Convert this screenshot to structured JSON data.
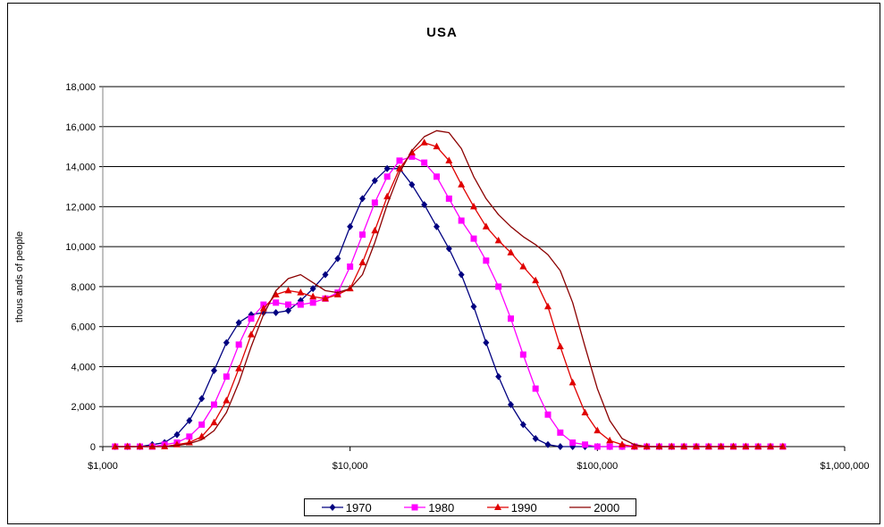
{
  "chart_data": {
    "type": "line",
    "title": "USA",
    "xlabel": "",
    "ylabel": "thous ands  of people",
    "xscale": "log",
    "xlim": [
      1000,
      1000000
    ],
    "ylim": [
      0,
      18000
    ],
    "x_ticks": [
      "$1,000",
      "$10,000",
      "$100,000",
      "$1,000,000"
    ],
    "y_ticks": [
      "0",
      "2,000",
      "4,000",
      "6,000",
      "8,000",
      "10,000",
      "12,000",
      "14,000",
      "16,000",
      "18,000"
    ],
    "grid": "horizontal",
    "legend_position": "bottom",
    "series": [
      {
        "name": "1970",
        "color": "#000080",
        "marker": "diamond",
        "x": [
          1122,
          1259,
          1413,
          1585,
          1778,
          1995,
          2239,
          2512,
          2818,
          3162,
          3548,
          3981,
          4467,
          5012,
          5623,
          6310,
          7079,
          7943,
          8913,
          10000,
          11220,
          12589,
          14125,
          15849,
          17783,
          19953,
          22387,
          25119,
          28184,
          31623,
          35481,
          39811,
          44668,
          50119,
          56234,
          63096,
          70795,
          79433,
          89125,
          100000,
          112202,
          125893,
          141254,
          158489,
          177828,
          199526
        ],
        "y": [
          0,
          0,
          0,
          100,
          200,
          600,
          1300,
          2400,
          3800,
          5200,
          6200,
          6600,
          6700,
          6700,
          6800,
          7300,
          7900,
          8600,
          9400,
          11000,
          12400,
          13300,
          13900,
          13900,
          13100,
          12100,
          11000,
          9900,
          8600,
          7000,
          5200,
          3500,
          2100,
          1100,
          400,
          100,
          0,
          0,
          0,
          0,
          0,
          0,
          0,
          0,
          0,
          0
        ]
      },
      {
        "name": "1980",
        "color": "#ff00ff",
        "marker": "square",
        "x": [
          1122,
          1259,
          1413,
          1585,
          1778,
          1995,
          2239,
          2512,
          2818,
          3162,
          3548,
          3981,
          4467,
          5012,
          5623,
          6310,
          7079,
          7943,
          8913,
          10000,
          11220,
          12589,
          14125,
          15849,
          17783,
          19953,
          22387,
          25119,
          28184,
          31623,
          35481,
          39811,
          44668,
          50119,
          56234,
          63096,
          70795,
          79433,
          89125,
          100000,
          112202,
          125893,
          141254,
          158489,
          177828,
          199526,
          223872,
          251189,
          281838,
          316228,
          354813,
          398107,
          446684,
          501187,
          562341
        ],
        "y": [
          0,
          0,
          0,
          0,
          100,
          200,
          500,
          1100,
          2100,
          3500,
          5100,
          6400,
          7100,
          7200,
          7100,
          7100,
          7200,
          7400,
          7700,
          9000,
          10600,
          12200,
          13500,
          14300,
          14500,
          14200,
          13500,
          12400,
          11300,
          10400,
          9300,
          8000,
          6400,
          4600,
          2900,
          1600,
          700,
          200,
          100,
          0,
          0,
          0,
          0,
          0,
          0,
          0,
          0,
          0,
          0,
          0,
          0,
          0,
          0,
          0,
          0
        ]
      },
      {
        "name": "1990",
        "color": "#e00000",
        "marker": "triangle",
        "x": [
          1122,
          1259,
          1413,
          1585,
          1778,
          1995,
          2239,
          2512,
          2818,
          3162,
          3548,
          3981,
          4467,
          5012,
          5623,
          6310,
          7079,
          7943,
          8913,
          10000,
          11220,
          12589,
          14125,
          15849,
          17783,
          19953,
          22387,
          25119,
          28184,
          31623,
          35481,
          39811,
          44668,
          50119,
          56234,
          63096,
          70795,
          79433,
          89125,
          100000,
          112202,
          125893,
          141254,
          158489,
          177828,
          199526,
          223872,
          251189,
          281838,
          316228,
          354813,
          398107,
          446684,
          501187,
          562341
        ],
        "y": [
          0,
          0,
          0,
          0,
          0,
          100,
          200,
          500,
          1200,
          2300,
          3900,
          5600,
          6900,
          7600,
          7800,
          7700,
          7500,
          7400,
          7600,
          7900,
          9200,
          10800,
          12500,
          13900,
          14700,
          15200,
          15000,
          14300,
          13100,
          12000,
          11000,
          10300,
          9700,
          9000,
          8300,
          7000,
          5000,
          3200,
          1700,
          800,
          300,
          100,
          0,
          0,
          0,
          0,
          0,
          0,
          0,
          0,
          0,
          0,
          0,
          0,
          0
        ]
      },
      {
        "name": "2000",
        "color": "#8b0000",
        "marker": "none",
        "x": [
          1122,
          1259,
          1413,
          1585,
          1778,
          1995,
          2239,
          2512,
          2818,
          3162,
          3548,
          3981,
          4467,
          5012,
          5623,
          6310,
          7079,
          7943,
          8913,
          10000,
          11220,
          12589,
          14125,
          15849,
          17783,
          19953,
          22387,
          25119,
          28184,
          31623,
          35481,
          39811,
          44668,
          50119,
          56234,
          63096,
          70795,
          79433,
          89125,
          100000,
          112202,
          125893,
          141254,
          158489,
          177828,
          199526,
          223872,
          251189,
          281838,
          316228,
          354813,
          398107,
          446684,
          501187,
          562341
        ],
        "y": [
          0,
          0,
          0,
          0,
          0,
          50,
          150,
          350,
          800,
          1700,
          3200,
          5000,
          6600,
          7800,
          8400,
          8600,
          8200,
          7800,
          7700,
          7900,
          8600,
          10200,
          12100,
          13700,
          14800,
          15500,
          15800,
          15700,
          14900,
          13500,
          12400,
          11600,
          11000,
          10500,
          10100,
          9600,
          8800,
          7200,
          5000,
          2900,
          1300,
          400,
          100,
          0,
          0,
          0,
          0,
          0,
          0,
          0,
          0,
          0,
          0,
          0,
          0
        ]
      }
    ]
  }
}
